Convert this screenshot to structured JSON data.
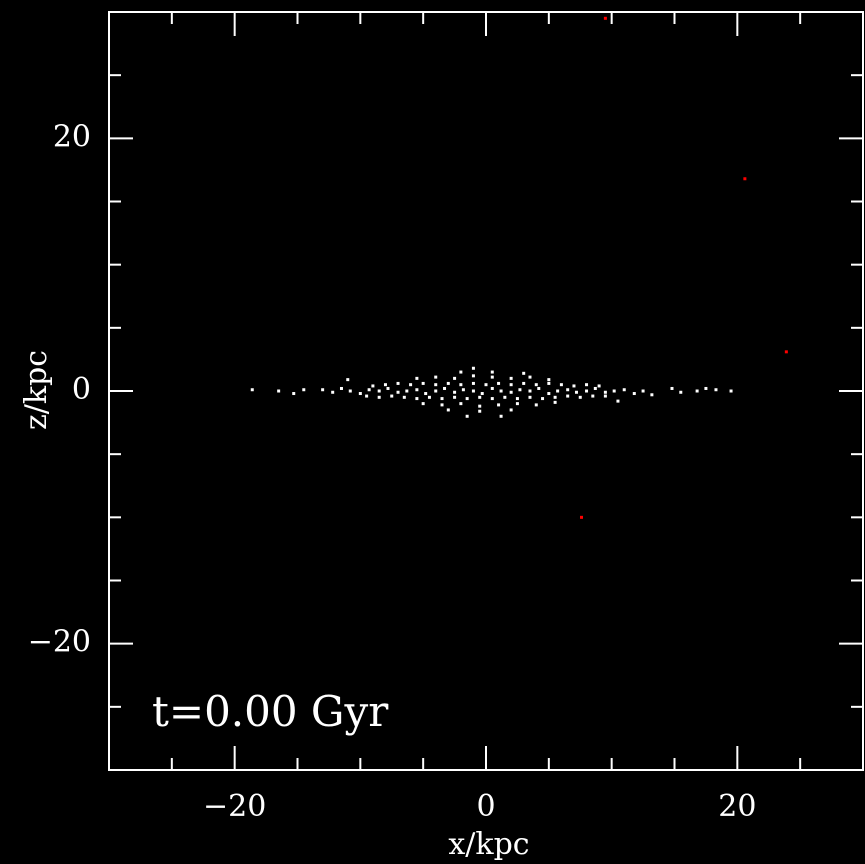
{
  "chart_data": {
    "type": "scatter",
    "annotation": "t=0.00 Gyr",
    "x_label": "x/kpc",
    "y_label": "z/kpc",
    "xlim": [
      -30,
      30
    ],
    "ylim": [
      -30,
      30
    ],
    "xticks": [
      {
        "value": -20,
        "label": "−20"
      },
      0,
      20
    ],
    "yticks": [
      {
        "value": -20,
        "label": "−20"
      },
      0,
      20
    ],
    "xminorticks": [
      -25,
      -15,
      -10,
      -5,
      5,
      10,
      15,
      25
    ],
    "yminorticks": [
      -25,
      -15,
      -10,
      -5,
      5,
      10,
      15,
      25
    ],
    "series": [
      {
        "color": "#ffffff",
        "x": [
          -13,
          -12.2,
          -11.5,
          -10.8,
          -10,
          -9.3,
          -8.5,
          -7.8,
          -7,
          -6.3,
          -5.5,
          -4.8,
          -4,
          -3.3,
          -2.5,
          -1.8,
          -1,
          -0.3,
          0.5,
          1.2,
          2,
          2.7,
          3.5,
          4.2,
          5,
          5.7,
          6.5,
          7.2,
          8,
          8.7,
          9.5,
          10.2,
          11,
          11.8,
          12.5,
          -9,
          -8,
          -7,
          -6,
          -5,
          -4,
          -3,
          -2,
          -1,
          0,
          1,
          2,
          3,
          4,
          5,
          6,
          7,
          8,
          9,
          -9.5,
          -8.5,
          -7.5,
          -6.5,
          -5.5,
          -4.5,
          -3.5,
          -2.5,
          -1.5,
          -0.5,
          0.5,
          1.5,
          2.5,
          3.5,
          4.5,
          5.5,
          6.5,
          7.5,
          8.5,
          9.5,
          -5.5,
          -4,
          -2.5,
          -1,
          0.5,
          2,
          3.5,
          5,
          -5,
          -3.5,
          -2,
          -0.5,
          1,
          2.5,
          4,
          5.5,
          -2,
          0.5,
          3,
          -3,
          -0.5,
          2,
          -1.5,
          1.2,
          -1,
          -18.6,
          -16.5,
          -15.3,
          -14.5,
          14.8,
          15.5,
          16.8,
          17.5,
          18.3,
          19.5,
          -11,
          10.5,
          13.2
        ],
        "y": [
          0.1,
          -0.1,
          0.2,
          0,
          -0.2,
          0.1,
          0,
          0.2,
          -0.1,
          0,
          0.1,
          -0.2,
          0,
          0.2,
          -0.1,
          0.1,
          0,
          -0.2,
          0.2,
          0,
          -0.1,
          0.1,
          0,
          0.2,
          -0.2,
          0,
          0.1,
          -0.1,
          0,
          0.2,
          -0.1,
          0,
          0.1,
          -0.2,
          0,
          0.4,
          0.5,
          0.6,
          0.5,
          0.6,
          0.5,
          0.6,
          0.5,
          0.6,
          0.5,
          0.6,
          0.5,
          0.6,
          0.5,
          0.6,
          0.5,
          0.4,
          0.5,
          0.4,
          -0.4,
          -0.5,
          -0.4,
          -0.5,
          -0.6,
          -0.5,
          -0.6,
          -0.5,
          -0.6,
          -0.5,
          -0.6,
          -0.5,
          -0.6,
          -0.5,
          -0.6,
          -0.5,
          -0.4,
          -0.5,
          -0.4,
          -0.4,
          1.0,
          1.1,
          1.0,
          1.2,
          1.1,
          1.0,
          1.1,
          0.9,
          -1.0,
          -1.1,
          -1.0,
          -1.2,
          -1.1,
          -1.0,
          -1.1,
          -0.9,
          1.5,
          1.5,
          1.4,
          -1.5,
          -1.6,
          -1.5,
          -2,
          -2,
          1.8,
          0.1,
          0,
          -0.2,
          0.1,
          0.2,
          -0.1,
          0,
          0.2,
          0.1,
          0,
          0.9,
          -0.8,
          -0.3
        ]
      },
      {
        "color": "#ff0000",
        "x": [
          9.5,
          20.6,
          23.9,
          7.6
        ],
        "y": [
          29.5,
          16.8,
          3.1,
          -10.0
        ]
      }
    ]
  }
}
